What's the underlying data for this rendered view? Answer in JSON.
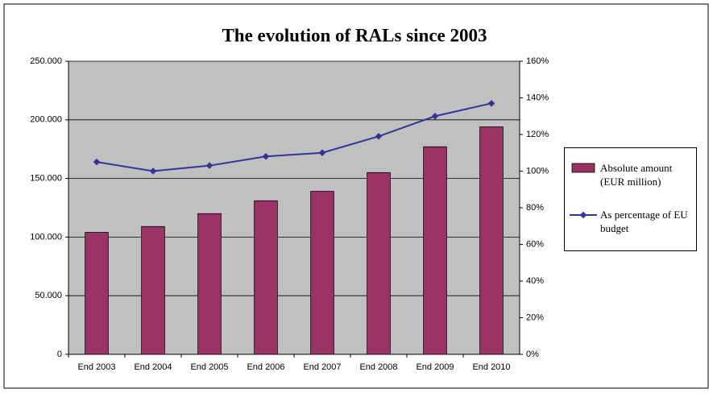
{
  "chart_data": {
    "type": "bar-line",
    "title": "The evolution of RALs since 2003",
    "categories": [
      "End 2003",
      "End 2004",
      "End 2005",
      "End 2006",
      "End 2007",
      "End 2008",
      "End 2009",
      "End 2010"
    ],
    "series": [
      {
        "name": "Absolute amount (EUR million)",
        "type": "bar",
        "color": "#993366",
        "values": [
          104000,
          109000,
          120000,
          131000,
          139000,
          155000,
          177000,
          194000
        ]
      },
      {
        "name": "As percentage of EU budget",
        "type": "line",
        "color": "#333399",
        "axis": "y2",
        "values": [
          105,
          100,
          103,
          108,
          110,
          119,
          130,
          137
        ]
      }
    ],
    "ylim": [
      0,
      250000
    ],
    "yticks": [
      0,
      {
        "value": 50000,
        "label": "50.000"
      },
      {
        "value": 100000,
        "label": "100.000"
      },
      {
        "value": 150000,
        "label": "150.000"
      },
      {
        "value": 200000,
        "label": "200.000"
      },
      {
        "value": 250000,
        "label": "250.000"
      }
    ],
    "y2lim": [
      0,
      160
    ],
    "y2ticks": [
      {
        "value": 0,
        "label": "0%"
      },
      {
        "value": 20,
        "label": "20%"
      },
      {
        "value": 40,
        "label": "40%"
      },
      {
        "value": 60,
        "label": "60%"
      },
      {
        "value": 80,
        "label": "80%"
      },
      {
        "value": 100,
        "label": "100%"
      },
      {
        "value": 120,
        "label": "120%"
      },
      {
        "value": 140,
        "label": "140%"
      },
      {
        "value": 160,
        "label": "160%"
      }
    ],
    "grid": true,
    "legend": "right"
  }
}
